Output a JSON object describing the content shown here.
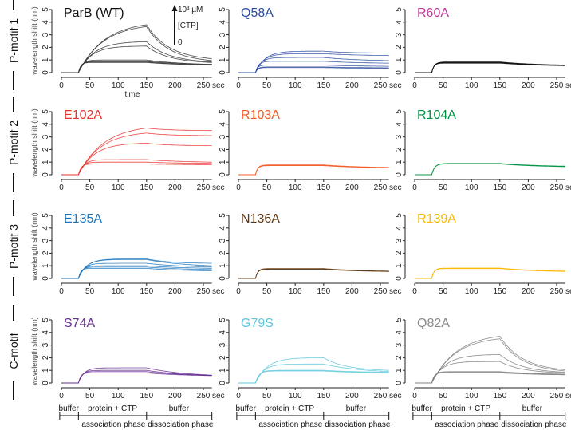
{
  "row_labels": [
    "P-motif 1",
    "P-motif 2",
    "P-motif 3",
    "C-motif"
  ],
  "labels": {
    "ylabel": "wavelength shift (nm)",
    "xlabel": "time",
    "sec": "sec",
    "inset_top": "10³ µM",
    "inset_mid": "[CTP]",
    "inset_bottom": "0"
  },
  "phases": {
    "buffer1": "buffer",
    "protein": "protein + CTP",
    "buffer2": "buffer",
    "association": "association phase",
    "dissociation": "dissociation phase"
  },
  "chart_data": {
    "type": "line",
    "xlabel": "time",
    "ylabel": "wavelength shift (nm)",
    "xlim": [
      0,
      265
    ],
    "ylim": [
      0,
      5
    ],
    "xticks": [
      0,
      50,
      100,
      150,
      200,
      250
    ],
    "yticks": [
      0,
      1,
      2,
      3,
      4,
      5
    ],
    "injection_start_sec": 30,
    "dissociation_start_sec": 150,
    "end_sec": 265,
    "panels": [
      {
        "title": "ParB (WT)",
        "title_color": "#111111",
        "line_color": "#333333",
        "peaks": [
          3.8,
          3.65,
          2.45,
          2.1,
          1.0,
          0.9,
          0.85,
          0.8
        ],
        "ends": [
          1.1,
          0.95,
          0.85,
          0.8,
          0.65,
          0.65,
          0.6,
          0.6
        ]
      },
      {
        "title": "Q58A",
        "title_color": "#2b4ba0",
        "line_color": "#2b4ba0",
        "peaks": [
          1.7,
          1.5,
          1.2,
          0.9,
          0.6,
          0.45,
          0.4
        ],
        "ends": [
          1.55,
          1.35,
          0.95,
          0.75,
          0.5,
          0.38,
          0.33
        ]
      },
      {
        "title": "R60A",
        "title_color": "#c0399a",
        "line_color": "#111111",
        "peaks": [
          0.85,
          0.82,
          0.8,
          0.78,
          0.75
        ],
        "ends": [
          0.6,
          0.58,
          0.57,
          0.56,
          0.55
        ]
      },
      {
        "title": "E102A",
        "title_color": "#e8322d",
        "line_color": "#e8322d",
        "peaks": [
          3.7,
          3.3,
          2.5,
          1.2,
          1.0,
          0.85
        ],
        "ends": [
          3.5,
          3.1,
          2.3,
          1.0,
          0.9,
          0.8
        ]
      },
      {
        "title": "R103A",
        "title_color": "#f15a24",
        "line_color": "#f15a24",
        "peaks": [
          0.78,
          0.75,
          0.72
        ],
        "ends": [
          0.58,
          0.56,
          0.55
        ]
      },
      {
        "title": "R104A",
        "title_color": "#009245",
        "line_color": "#009245",
        "peaks": [
          0.9,
          0.88,
          0.86
        ],
        "ends": [
          0.68,
          0.66,
          0.64
        ]
      },
      {
        "title": "E135A",
        "title_color": "#1c75bc",
        "line_color": "#1c75bc",
        "peaks": [
          1.55,
          1.5,
          1.2,
          1.0,
          0.9,
          0.8
        ],
        "ends": [
          1.2,
          1.0,
          0.9,
          0.8,
          0.7,
          0.6
        ]
      },
      {
        "title": "N136A",
        "title_color": "#603813",
        "line_color": "#603813",
        "peaks": [
          0.78,
          0.75,
          0.72
        ],
        "ends": [
          0.58,
          0.56,
          0.55
        ]
      },
      {
        "title": "R139A",
        "title_color": "#f9b800",
        "line_color": "#f9b800",
        "peaks": [
          0.82,
          0.8,
          0.78
        ],
        "ends": [
          0.58,
          0.56,
          0.55
        ]
      },
      {
        "title": "S74A",
        "title_color": "#662d91",
        "line_color": "#662d91",
        "peaks": [
          1.2,
          1.0,
          0.9,
          0.8
        ],
        "ends": [
          0.62,
          0.6,
          0.6,
          0.58
        ]
      },
      {
        "title": "G79S",
        "title_color": "#5bc8dc",
        "line_color": "#5bc8dc",
        "peaks": [
          2.0,
          1.5,
          1.0,
          0.95
        ],
        "ends": [
          1.0,
          0.9,
          0.85,
          0.8
        ]
      },
      {
        "title": "Q82A",
        "title_color": "#8a8a8a",
        "line_color": "#808080",
        "peaks": [
          3.7,
          3.5,
          2.25,
          1.7,
          0.9,
          0.85,
          0.8
        ],
        "ends": [
          1.05,
          0.95,
          0.85,
          0.8,
          0.7,
          0.65,
          0.65
        ]
      }
    ]
  }
}
